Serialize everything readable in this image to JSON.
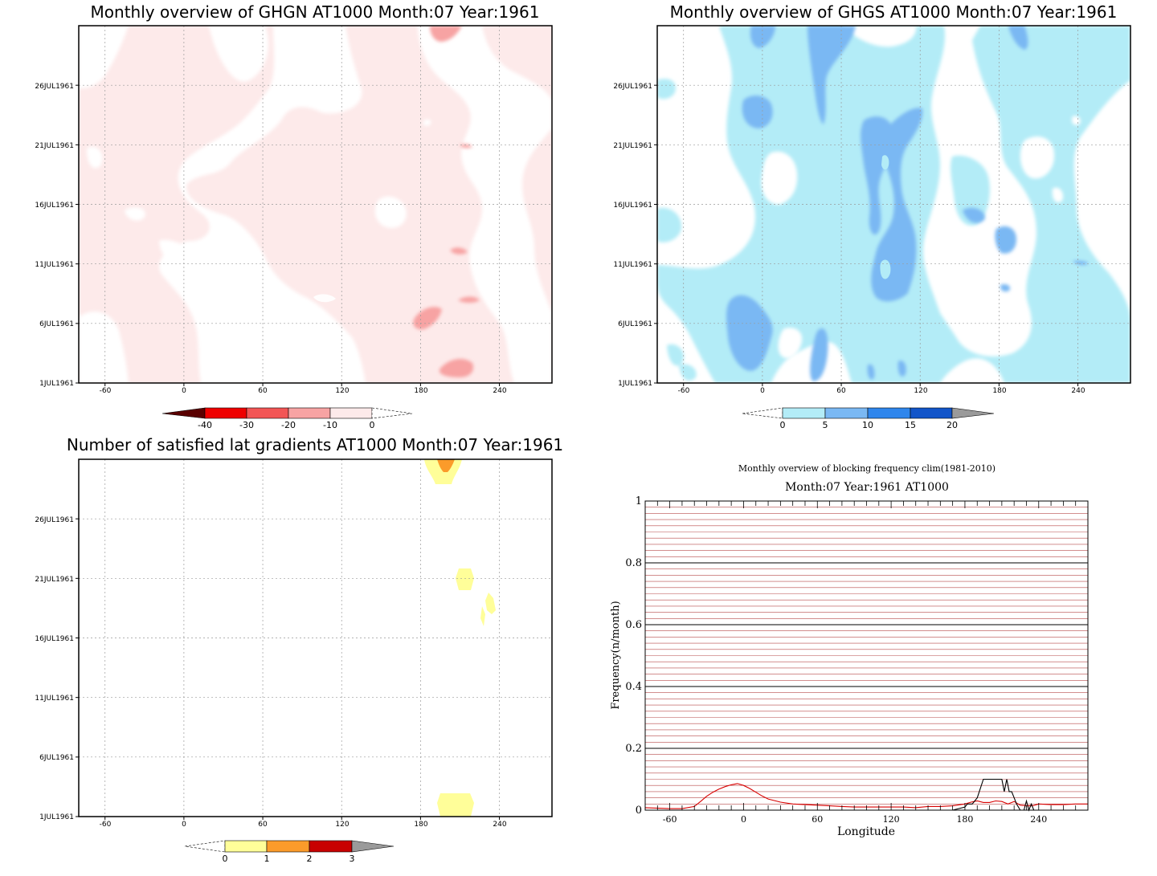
{
  "chart_data": [
    {
      "type": "heatmap",
      "title": "Monthly overview of GHGN AT1000 Month:07 Year:1961",
      "x_ticks": [
        "-60",
        "0",
        "60",
        "120",
        "180",
        "240"
      ],
      "x_tick_values": [
        -60,
        0,
        60,
        120,
        180,
        240
      ],
      "xlim": [
        -80,
        280
      ],
      "y_ticks": [
        "1JUL1961",
        "6JUL1961",
        "11JUL1961",
        "16JUL1961",
        "21JUL1961",
        "26JUL1961"
      ],
      "y_tick_values": [
        1,
        6,
        11,
        16,
        21,
        26
      ],
      "ylim": [
        1,
        31
      ],
      "grid": true,
      "colorbar": {
        "labels": [
          "-40",
          "-30",
          "-20",
          "-10",
          "0"
        ],
        "colors": [
          "#5a0000",
          "#ee0000",
          "#f25555",
          "#f7a3a3",
          "#fdeaea"
        ]
      }
    },
    {
      "type": "heatmap",
      "title": "Monthly overview of GHGS AT1000 Month:07 Year:1961",
      "x_ticks": [
        "-60",
        "0",
        "60",
        "120",
        "180",
        "240"
      ],
      "x_tick_values": [
        -60,
        0,
        60,
        120,
        180,
        240
      ],
      "xlim": [
        -80,
        280
      ],
      "y_ticks": [
        "1JUL1961",
        "6JUL1961",
        "11JUL1961",
        "16JUL1961",
        "21JUL1961",
        "26JUL1961"
      ],
      "y_tick_values": [
        1,
        6,
        11,
        16,
        21,
        26
      ],
      "ylim": [
        1,
        31
      ],
      "grid": true,
      "colorbar": {
        "labels": [
          "0",
          "5",
          "10",
          "15",
          "20"
        ],
        "colors": [
          "#b3ecf7",
          "#7ab8f3",
          "#2f86ec",
          "#1255c9",
          "#9a9a9a"
        ]
      }
    },
    {
      "type": "heatmap",
      "title": "Number of satisfied lat gradients AT1000 Month:07 Year:1961",
      "x_ticks": [
        "-60",
        "0",
        "60",
        "120",
        "180",
        "240"
      ],
      "x_tick_values": [
        -60,
        0,
        60,
        120,
        180,
        240
      ],
      "xlim": [
        -80,
        280
      ],
      "y_ticks": [
        "1JUL1961",
        "6JUL1961",
        "11JUL1961",
        "16JUL1961",
        "21JUL1961",
        "26JUL1961"
      ],
      "y_tick_values": [
        1,
        6,
        11,
        16,
        21,
        26
      ],
      "ylim": [
        1,
        31
      ],
      "grid": true,
      "colorbar": {
        "labels": [
          "0",
          "1",
          "2",
          "3"
        ],
        "colors": [
          "#fffe99",
          "#fb9b2a",
          "#c80000",
          "#9a9a9a"
        ]
      }
    },
    {
      "type": "line",
      "title": "Monthly overview of blocking frequency clim(1981-2010)",
      "subtitle": "Month:07 Year:1961  AT1000",
      "xlabel": "Longitude",
      "ylabel": "Frequency(n/month)",
      "x_ticks": [
        "-60",
        "0",
        "60",
        "120",
        "180",
        "240"
      ],
      "x_tick_values": [
        -60,
        0,
        60,
        120,
        180,
        240
      ],
      "y_ticks": [
        "0",
        "0.2",
        "0.4",
        "0.6",
        "0.8",
        "1"
      ],
      "y_tick_values": [
        0,
        0.2,
        0.4,
        0.6,
        0.8,
        1
      ],
      "xlim": [
        -80,
        280
      ],
      "ylim": [
        0,
        1
      ],
      "grid": true,
      "series": [
        {
          "color": "#d80000",
          "x": [
            -80,
            -60,
            -50,
            -40,
            -35,
            -30,
            -25,
            -20,
            -15,
            -10,
            -5,
            0,
            5,
            10,
            15,
            20,
            30,
            40,
            50,
            60,
            70,
            80,
            90,
            100,
            110,
            120,
            130,
            140,
            150,
            160,
            170,
            180,
            185,
            190,
            195,
            200,
            205,
            210,
            215,
            220,
            225,
            230,
            235,
            240,
            250,
            260,
            270,
            280
          ],
          "y": [
            0.008,
            0.005,
            0.005,
            0.012,
            0.028,
            0.045,
            0.058,
            0.068,
            0.076,
            0.082,
            0.086,
            0.08,
            0.07,
            0.058,
            0.046,
            0.036,
            0.026,
            0.02,
            0.018,
            0.016,
            0.014,
            0.012,
            0.01,
            0.01,
            0.01,
            0.01,
            0.01,
            0.008,
            0.012,
            0.012,
            0.014,
            0.02,
            0.026,
            0.03,
            0.025,
            0.025,
            0.03,
            0.028,
            0.02,
            0.028,
            0.016,
            0.014,
            0.014,
            0.02,
            0.018,
            0.018,
            0.02,
            0.02
          ]
        },
        {
          "color": "#000000",
          "x": [
            -80,
            170,
            180,
            182,
            186,
            190,
            195,
            200,
            205,
            210,
            212,
            214,
            216,
            218,
            220,
            222,
            225,
            228,
            230,
            232,
            234,
            236,
            238,
            240,
            280
          ],
          "y": [
            0,
            0,
            0.01,
            0.02,
            0.02,
            0.04,
            0.1,
            0.1,
            0.1,
            0.1,
            0.06,
            0.1,
            0.06,
            0.06,
            0.04,
            0.02,
            0.0,
            0.0,
            0.03,
            0.0,
            0.02,
            0.0,
            0.0,
            0.0,
            0.0
          ]
        }
      ]
    }
  ]
}
